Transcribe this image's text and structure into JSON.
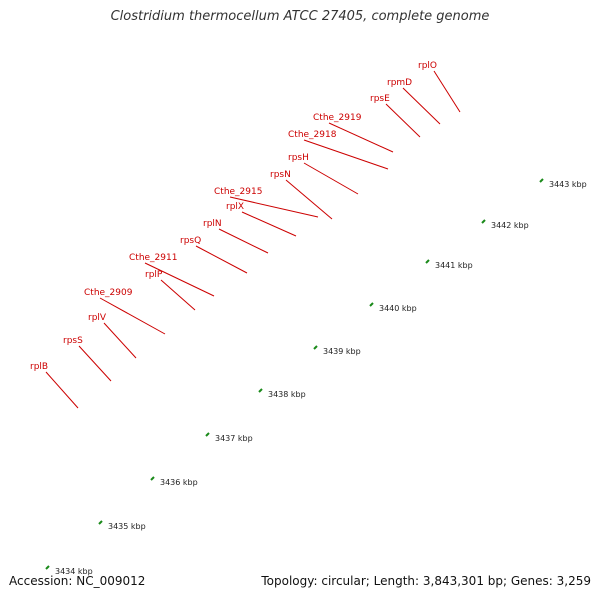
{
  "title": "Clostridium thermocellum ATCC 27405, complete genome",
  "footer": {
    "accession": "Accession: NC_009012",
    "topology": "Topology: circular; Length: 3,843,301 bp; Genes: 3,259"
  },
  "colors": {
    "forward_gene": "#f08c8c",
    "reverse_gene": "#ff0000",
    "backbone": "#9a9a9a",
    "ticks": "#1a8a1a",
    "gene_label": "#cc0000",
    "green_feature": "#a8ea2c",
    "blue_feature": "#1ab0e8"
  },
  "gene_labels": [
    "rplB",
    "rpsS",
    "rplV",
    "Cthe_2909",
    "rplP",
    "Cthe_2911",
    "rpsQ",
    "rplN",
    "rplX",
    "Cthe_2915",
    "rpsN",
    "rpsH",
    "Cthe_2918",
    "Cthe_2919",
    "rpsE",
    "rpmD",
    "rplO"
  ],
  "kbp_labels": [
    "3434 kbp",
    "3435 kbp",
    "3436 kbp",
    "3437 kbp",
    "3438 kbp",
    "3439 kbp",
    "3440 kbp",
    "3441 kbp",
    "3442 kbp",
    "3443 kbp"
  ]
}
